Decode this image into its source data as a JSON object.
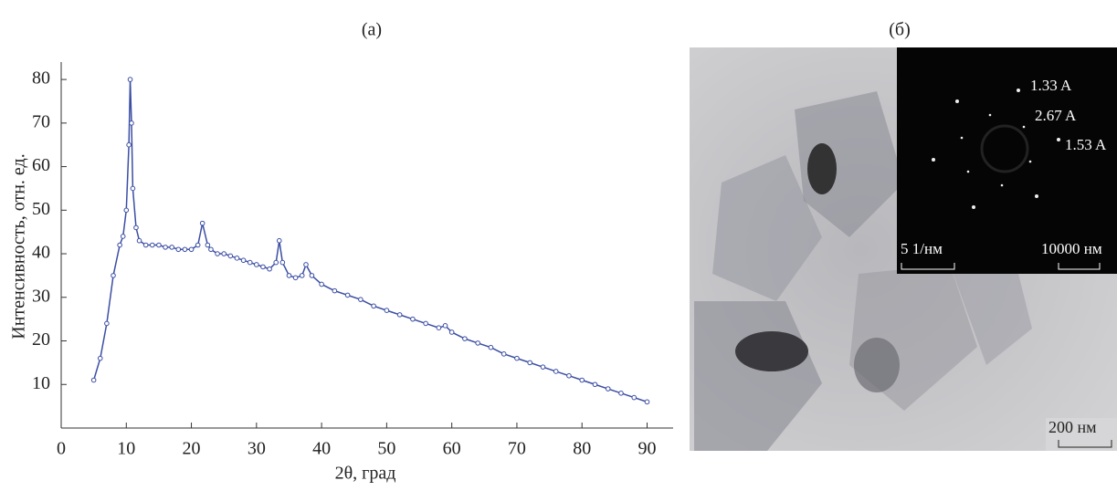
{
  "chart_data": {
    "type": "line",
    "title": "(a)",
    "xlabel": "2θ, град",
    "ylabel": "Интенсивность, отн. ед.",
    "x": [
      5,
      6,
      7,
      8,
      9,
      9.5,
      10,
      10.4,
      10.6,
      10.8,
      11,
      11.5,
      12,
      13,
      14,
      15,
      16,
      17,
      18,
      19,
      20,
      21,
      21.7,
      22.5,
      23,
      24,
      25,
      26,
      27,
      28,
      29,
      30,
      31,
      32,
      33,
      33.5,
      34,
      35,
      36,
      37,
      37.6,
      38.5,
      40,
      42,
      44,
      46,
      48,
      50,
      52,
      54,
      56,
      58,
      59,
      60,
      62,
      64,
      66,
      68,
      70,
      72,
      74,
      76,
      78,
      80,
      82,
      84,
      86,
      88,
      90
    ],
    "series": [
      {
        "color": "#3b4ea3",
        "values": [
          11,
          16,
          24,
          35,
          42,
          44,
          50,
          65,
          80,
          70,
          55,
          46,
          43,
          42,
          42,
          42,
          41.5,
          41.5,
          41,
          41,
          41,
          42,
          47,
          42,
          41,
          40,
          40,
          39.5,
          39,
          38.5,
          38,
          37.5,
          37,
          36.5,
          38,
          43,
          38,
          35,
          34.5,
          35,
          37.5,
          35,
          33,
          31.5,
          30.5,
          29.5,
          28,
          27,
          26,
          25,
          24,
          23,
          23.5,
          22,
          20.5,
          19.5,
          18.5,
          17,
          16,
          15,
          14,
          13,
          12,
          11,
          10,
          9,
          8,
          7,
          6
        ]
      }
    ],
    "xlim": [
      0,
      94
    ],
    "ylim": [
      0,
      84
    ],
    "xticks": [
      0,
      10,
      20,
      30,
      40,
      50,
      60,
      70,
      80,
      90
    ],
    "yticks": [
      10,
      20,
      30,
      40,
      50,
      60,
      70,
      80
    ]
  },
  "panel_b": {
    "label": "(б)",
    "inset_annotations": [
      "1.33 A",
      "2.67 A",
      "1.53 A"
    ],
    "inset_scale_left": "5 1/нм",
    "inset_scale_right": "10000 нм",
    "scale_bar": "200 нм"
  }
}
